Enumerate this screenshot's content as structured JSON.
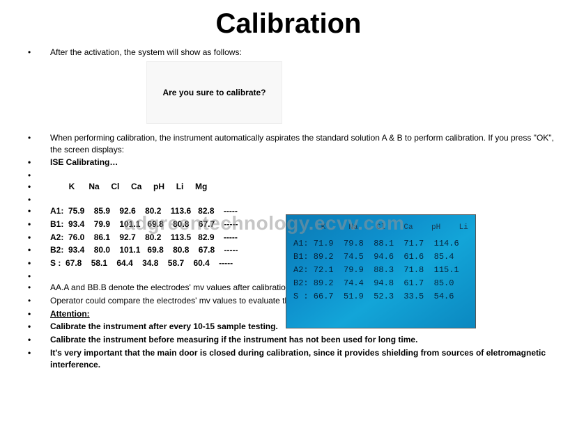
{
  "title": "Calibration",
  "intro": "After the activation, the system will show as follows:",
  "prompt": "Are you sure to calibrate?",
  "calib_desc": "When performing calibration, the instrument automatically aspirates the standard solution A & B to perform calibration. If you press \"OK\", the screen displays:",
  "ise": "ISE Calibrating…",
  "table": {
    "header_prefix": "        ",
    "columns": [
      "K",
      "Na",
      "Cl",
      "Ca",
      "pH",
      "Li",
      "Mg"
    ],
    "rows": [
      {
        "label": "A1:",
        "v": [
          "75.9",
          "85.9",
          "92.6",
          "80.2",
          "113.6",
          "82.8",
          "-----"
        ]
      },
      {
        "label": "B1:",
        "v": [
          "93.4",
          "79.9",
          "101.1",
          "69.8",
          "80.8",
          "67.7",
          "-----"
        ]
      },
      {
        "label": "A2:",
        "v": [
          "76.0",
          "86.1",
          "92.7",
          "80.2",
          "113.5",
          "82.9",
          "-----"
        ]
      },
      {
        "label": "B2:",
        "v": [
          "93.4",
          "80.0",
          "101.1",
          "69.8",
          "80.8",
          "67.8",
          "-----"
        ]
      },
      {
        "label": "S :",
        "v": [
          "67.8",
          "58.1",
          "64.4",
          "34.8",
          "58.7",
          "60.4",
          "-----"
        ]
      }
    ]
  },
  "photo": {
    "columns": [
      "K",
      "Na",
      "Cl",
      "Ca",
      "pH",
      "Li"
    ],
    "rows": [
      {
        "label": "A1:",
        "v": [
          "71.9",
          "79.8",
          "88.1",
          "71.7",
          "114.6",
          ""
        ]
      },
      {
        "label": "B1:",
        "v": [
          "89.2",
          "74.5",
          "94.6",
          "61.6",
          "85.4",
          ""
        ]
      },
      {
        "label": "A2:",
        "v": [
          "72.1",
          "79.9",
          "88.3",
          "71.8",
          "115.1",
          ""
        ]
      },
      {
        "label": "B2:",
        "v": [
          "89.2",
          "74.4",
          "94.8",
          "61.7",
          "85.0",
          ""
        ]
      },
      {
        "label": "S :",
        "v": [
          "66.7",
          "51.9",
          "52.3",
          "33.5",
          "54.6",
          ""
        ]
      }
    ]
  },
  "notes": {
    "aa_bb": "AA.A and BB.B denote the electrodes' mv values after calibration.",
    "operator": "Operator could compare the electrodes' mv values to evaluate the stability of electrodes.",
    "attention_label": "Attention:",
    "att1": " Calibrate the instrument after every 10-15 sample testing.",
    "att2": " Calibrate the instrument before measuring if the instrument has not been used for long time.",
    "att3": " It's very important that the main door is closed during calibration, since it provides shielding from sources of eletromagnetic interference."
  },
  "watermark": "adgreentechnology.ecvv.com",
  "styling": {
    "page_bg": "#ffffff",
    "text_color": "#000000",
    "title_fontsize": 40,
    "body_fontsize": 12,
    "prompt_bg": "#f8f8f8",
    "photo_bg_gradient": [
      "#0a7ab4",
      "#0e8fcc",
      "#13a5d8",
      "#0b88c0"
    ],
    "photo_text_color": "#06233c",
    "watermark_color": "rgba(150,150,150,0.55)"
  }
}
